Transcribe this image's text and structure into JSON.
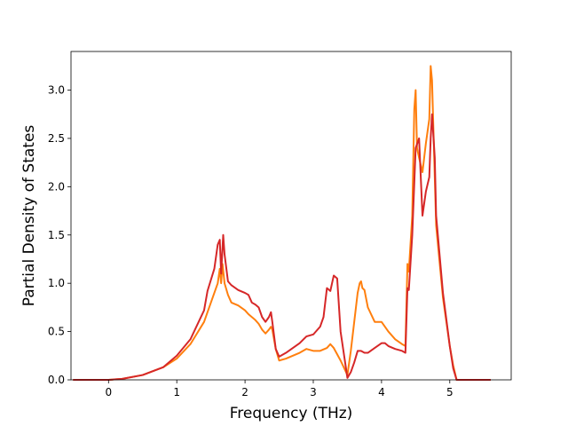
{
  "chart_data": {
    "type": "line",
    "title": "",
    "xlabel": "Frequency (THz)",
    "ylabel": "Partial Density of States",
    "xlim": [
      -0.55,
      5.9
    ],
    "ylim": [
      0.0,
      3.4
    ],
    "xticks": [
      0,
      1,
      2,
      3,
      4,
      5
    ],
    "yticks": [
      0.0,
      0.5,
      1.0,
      1.5,
      2.0,
      2.5,
      3.0
    ],
    "xtick_labels": [
      "0",
      "1",
      "2",
      "3",
      "4",
      "5"
    ],
    "ytick_labels": [
      "0.0",
      "0.5",
      "1.0",
      "1.5",
      "2.0",
      "2.5",
      "3.0"
    ],
    "grid": false,
    "legend": "none",
    "series": [
      {
        "color": "#ff7f0e",
        "x": [
          -0.52,
          0.0,
          0.2,
          0.5,
          0.8,
          1.0,
          1.2,
          1.4,
          1.5,
          1.6,
          1.63,
          1.65,
          1.67,
          1.7,
          1.75,
          1.8,
          1.9,
          2.0,
          2.05,
          2.1,
          2.15,
          2.2,
          2.25,
          2.3,
          2.35,
          2.38,
          2.4,
          2.45,
          2.5,
          2.6,
          2.8,
          2.9,
          3.0,
          3.1,
          3.2,
          3.25,
          3.3,
          3.4,
          3.5,
          3.55,
          3.6,
          3.65,
          3.68,
          3.7,
          3.72,
          3.75,
          3.8,
          3.9,
          4.0,
          4.1,
          4.2,
          4.3,
          4.35,
          4.38,
          4.4,
          4.45,
          4.48,
          4.5,
          4.52,
          4.55,
          4.6,
          4.65,
          4.7,
          4.72,
          4.74,
          4.76,
          4.8,
          4.9,
          5.0,
          5.05,
          5.1,
          5.3,
          5.6
        ],
        "y": [
          0.0,
          0.0,
          0.01,
          0.05,
          0.13,
          0.22,
          0.37,
          0.6,
          0.8,
          1.0,
          1.15,
          1.0,
          1.2,
          1.0,
          0.88,
          0.8,
          0.77,
          0.72,
          0.68,
          0.65,
          0.62,
          0.58,
          0.52,
          0.48,
          0.52,
          0.55,
          0.52,
          0.32,
          0.2,
          0.22,
          0.28,
          0.32,
          0.3,
          0.3,
          0.33,
          0.37,
          0.33,
          0.2,
          0.05,
          0.3,
          0.6,
          0.9,
          1.0,
          1.02,
          0.95,
          0.93,
          0.75,
          0.6,
          0.6,
          0.5,
          0.42,
          0.37,
          0.35,
          1.2,
          1.12,
          1.7,
          2.8,
          3.0,
          2.4,
          2.3,
          2.15,
          2.45,
          2.7,
          3.25,
          3.1,
          2.6,
          1.6,
          0.85,
          0.35,
          0.15,
          0.0,
          0.0,
          0.0
        ]
      },
      {
        "color": "#d62728",
        "x": [
          -0.52,
          0.0,
          0.2,
          0.5,
          0.8,
          1.0,
          1.2,
          1.4,
          1.45,
          1.55,
          1.6,
          1.63,
          1.65,
          1.68,
          1.7,
          1.75,
          1.8,
          1.9,
          2.0,
          2.05,
          2.1,
          2.15,
          2.2,
          2.25,
          2.3,
          2.35,
          2.38,
          2.4,
          2.45,
          2.5,
          2.6,
          2.8,
          2.9,
          3.0,
          3.1,
          3.15,
          3.2,
          3.25,
          3.3,
          3.35,
          3.4,
          3.5,
          3.55,
          3.6,
          3.65,
          3.7,
          3.75,
          3.8,
          3.9,
          4.0,
          4.05,
          4.1,
          4.2,
          4.3,
          4.35,
          4.38,
          4.4,
          4.45,
          4.5,
          4.55,
          4.6,
          4.65,
          4.7,
          4.72,
          4.74,
          4.78,
          4.8,
          4.9,
          5.0,
          5.05,
          5.1,
          5.3,
          5.6
        ],
        "y": [
          0.0,
          0.0,
          0.01,
          0.05,
          0.13,
          0.25,
          0.42,
          0.72,
          0.92,
          1.15,
          1.4,
          1.45,
          1.1,
          1.5,
          1.3,
          1.02,
          0.98,
          0.93,
          0.9,
          0.88,
          0.8,
          0.78,
          0.75,
          0.65,
          0.6,
          0.65,
          0.7,
          0.6,
          0.32,
          0.24,
          0.28,
          0.38,
          0.45,
          0.47,
          0.55,
          0.65,
          0.95,
          0.92,
          1.08,
          1.05,
          0.5,
          0.02,
          0.08,
          0.18,
          0.3,
          0.3,
          0.28,
          0.28,
          0.33,
          0.38,
          0.38,
          0.35,
          0.32,
          0.3,
          0.28,
          0.95,
          0.93,
          1.5,
          2.4,
          2.5,
          1.7,
          1.95,
          2.1,
          2.5,
          2.75,
          2.3,
          1.7,
          0.9,
          0.35,
          0.12,
          0.0,
          0.0,
          0.0
        ]
      }
    ]
  }
}
